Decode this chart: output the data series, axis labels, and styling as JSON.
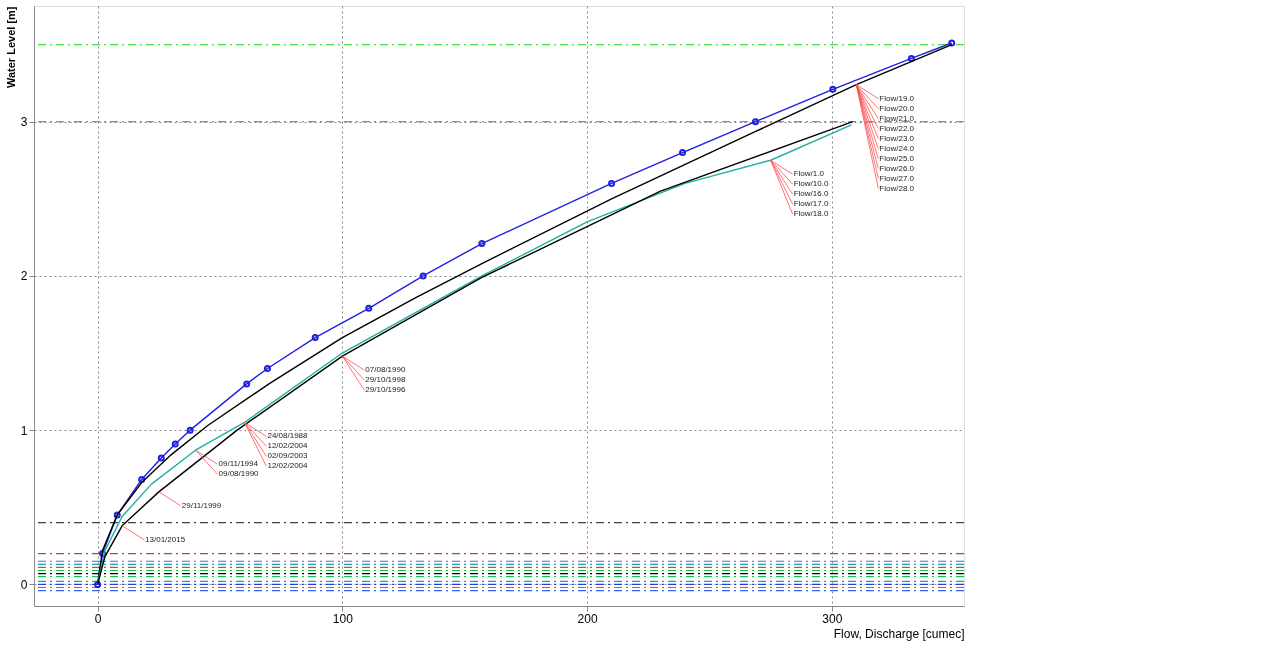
{
  "chart_data": {
    "type": "line",
    "xlabel": "Flow, Discharge [cumec]",
    "ylabel": "Water Level [m]",
    "xlim": [
      -26,
      354
    ],
    "ylim": [
      -0.14,
      3.75
    ],
    "xticks": [
      0,
      100,
      200,
      300
    ],
    "yticks": [
      0,
      1,
      2,
      3
    ],
    "grid": true,
    "series": [
      {
        "type": "line",
        "color": "#2020e0",
        "marker": "circle",
        "x": [
          0,
          2,
          8,
          18,
          26,
          31.7,
          37.8,
          60.9,
          69.4,
          88.9,
          110.8,
          133,
          157,
          210,
          239,
          268.8,
          300.4,
          332.5,
          349
        ],
        "values": [
          0,
          0.2,
          0.45,
          0.68,
          0.82,
          0.91,
          1.0,
          1.3,
          1.4,
          1.6,
          1.79,
          2.0,
          2.21,
          2.6,
          2.8,
          3.0,
          3.21,
          3.41,
          3.51
        ]
      },
      {
        "type": "line",
        "color": "#000000",
        "marker": "none",
        "x": [
          0,
          2,
          8,
          18,
          30,
          45,
          70,
          100,
          130,
          157,
          210,
          268,
          310,
          349
        ],
        "values": [
          0,
          0.22,
          0.45,
          0.66,
          0.84,
          1.03,
          1.3,
          1.6,
          1.86,
          2.08,
          2.5,
          2.93,
          3.24,
          3.5
        ]
      },
      {
        "type": "line",
        "color": "#20b0a0",
        "marker": "none",
        "x": [
          0,
          3,
          10,
          22,
          40,
          60,
          100,
          157,
          200,
          240,
          275,
          308
        ],
        "values": [
          0,
          0.22,
          0.44,
          0.65,
          0.87,
          1.05,
          1.5,
          2.0,
          2.35,
          2.6,
          2.75,
          2.98
        ]
      },
      {
        "type": "line",
        "color": "#000000",
        "marker": "none",
        "x": [
          0,
          3,
          10,
          25,
          57,
          100,
          157,
          230,
          308.6
        ],
        "values": [
          0,
          0.18,
          0.38,
          0.6,
          1.0,
          1.48,
          1.99,
          2.55,
          3.0
        ]
      }
    ],
    "ref_lines": [
      {
        "axis": "y",
        "value": 3.5,
        "color": "#40e040",
        "line_style": "dashed"
      },
      {
        "axis": "y",
        "value": 3.0,
        "color": "#909090",
        "line_style": "dashed"
      },
      {
        "axis": "y",
        "value": 0.4,
        "color": "#404040",
        "line_style": "dashed"
      },
      {
        "axis": "y",
        "value": 0.2,
        "color": "#c04040",
        "line_style": "dashed"
      },
      {
        "axis": "y",
        "value": 0.15,
        "color": "#2080e0",
        "line_style": "dashed"
      },
      {
        "axis": "y",
        "value": 0.13,
        "color": "#20a0a0",
        "line_style": "dashed"
      },
      {
        "axis": "y",
        "value": 0.11,
        "color": "#e04040",
        "line_style": "dashed"
      },
      {
        "axis": "y",
        "value": 0.09,
        "color": "#20c040",
        "line_style": "dashed"
      },
      {
        "axis": "y",
        "value": 0.07,
        "color": "#000000",
        "line_style": "dashed"
      },
      {
        "axis": "y",
        "value": 0.05,
        "color": "#20c060",
        "line_style": "dashed"
      },
      {
        "axis": "y",
        "value": 0.02,
        "color": "#20a0a0",
        "line_style": "dashed"
      },
      {
        "axis": "y",
        "value": 0.0,
        "color": "#2040e0",
        "line_style": "dashed"
      },
      {
        "axis": "y",
        "value": -0.02,
        "color": "#e04060",
        "line_style": "dashed"
      },
      {
        "axis": "y",
        "value": -0.04,
        "color": "#4060f0",
        "line_style": "dashed"
      }
    ],
    "annotations": [
      {
        "text": "Flow/1.0",
        "x": 275,
        "y": 2.75
      },
      {
        "text": "Flow/10.0",
        "x": 275,
        "y": 2.75
      },
      {
        "text": "Flow/16.0",
        "x": 275,
        "y": 2.75
      },
      {
        "text": "Flow/17.0",
        "x": 275,
        "y": 2.75
      },
      {
        "text": "Flow/18.0",
        "x": 275,
        "y": 2.75
      },
      {
        "text": "Flow/19.0",
        "x": 310,
        "y": 3.24
      },
      {
        "text": "Flow/20.0",
        "x": 310,
        "y": 3.24
      },
      {
        "text": "Flow/21.0",
        "x": 310,
        "y": 3.24
      },
      {
        "text": "Flow/22.0",
        "x": 310,
        "y": 3.24
      },
      {
        "text": "Flow/23.0",
        "x": 310,
        "y": 3.24
      },
      {
        "text": "Flow/24.0",
        "x": 310,
        "y": 3.24
      },
      {
        "text": "Flow/25.0",
        "x": 310,
        "y": 3.24
      },
      {
        "text": "Flow/26.0",
        "x": 310,
        "y": 3.24
      },
      {
        "text": "Flow/27.0",
        "x": 310,
        "y": 3.24
      },
      {
        "text": "Flow/28.0",
        "x": 310,
        "y": 3.24
      },
      {
        "text": "07/08/1990",
        "x": 100,
        "y": 1.48
      },
      {
        "text": "29/10/1998",
        "x": 100,
        "y": 1.48
      },
      {
        "text": "29/10/1996",
        "x": 100,
        "y": 1.48
      },
      {
        "text": "24/08/1988",
        "x": 60,
        "y": 1.05
      },
      {
        "text": "12/02/2004",
        "x": 60,
        "y": 1.05
      },
      {
        "text": "02/09/2003",
        "x": 60,
        "y": 1.05
      },
      {
        "text": "12/02/2004",
        "x": 60,
        "y": 1.05
      },
      {
        "text": "09/11/1994",
        "x": 40,
        "y": 0.87
      },
      {
        "text": "09/08/1990",
        "x": 40,
        "y": 0.87
      },
      {
        "text": "29/11/1999",
        "x": 25,
        "y": 0.6
      },
      {
        "text": "13/01/2015",
        "x": 10,
        "y": 0.38
      }
    ]
  }
}
